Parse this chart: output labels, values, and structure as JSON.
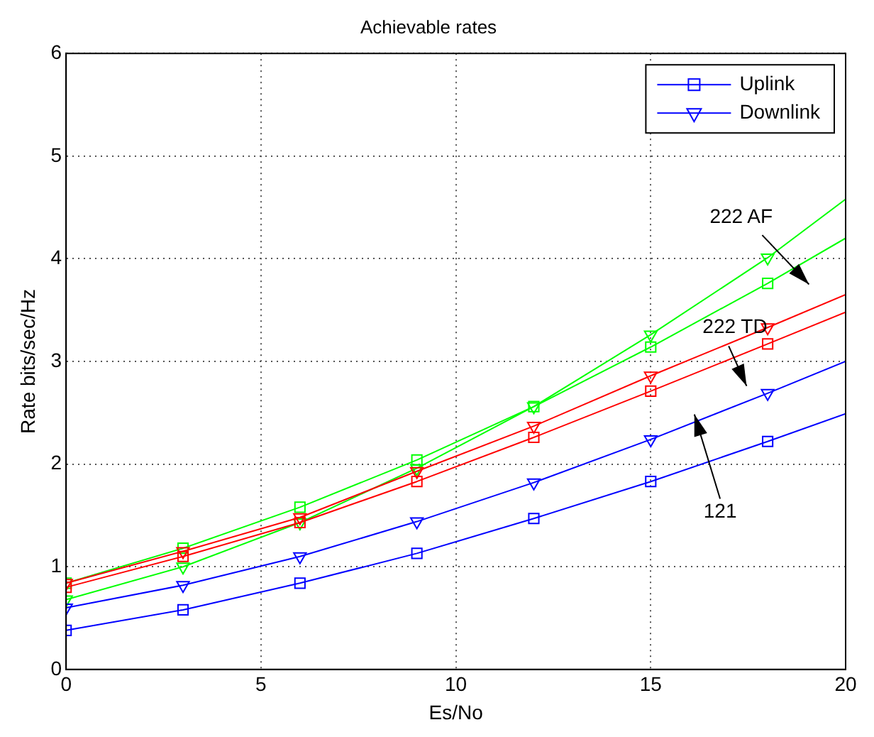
{
  "chart_data": {
    "type": "line",
    "title": "Achievable rates",
    "xlabel": "Es/No",
    "ylabel": "Rate bits/sec/Hz",
    "x": [
      0,
      3,
      6,
      9,
      12,
      15,
      18,
      20
    ],
    "series": [
      {
        "name": "Uplink",
        "color": "#0000ff",
        "marker": "square",
        "values": [
          0.38,
          0.58,
          0.84,
          1.13,
          1.47,
          1.83,
          2.22,
          2.49
        ]
      },
      {
        "name": "Downlink",
        "color": "#0000ff",
        "marker": "triangle",
        "values": [
          0.6,
          0.82,
          1.1,
          1.44,
          1.82,
          2.24,
          2.69,
          3.0
        ]
      },
      {
        "color": "#ff0000",
        "marker": "square",
        "values": [
          0.8,
          1.1,
          1.43,
          1.83,
          2.26,
          2.71,
          3.17,
          3.48
        ]
      },
      {
        "color": "#ff0000",
        "marker": "triangle",
        "values": [
          0.84,
          1.15,
          1.48,
          1.93,
          2.37,
          2.86,
          3.33,
          3.65
        ]
      },
      {
        "color": "#00ff00",
        "marker": "square",
        "values": [
          0.84,
          1.18,
          1.58,
          2.04,
          2.56,
          3.14,
          3.76,
          4.2
        ]
      },
      {
        "color": "#00ff00",
        "marker": "triangle",
        "values": [
          0.68,
          1.0,
          1.43,
          1.96,
          2.56,
          3.26,
          4.01,
          4.58
        ]
      }
    ],
    "xlim": [
      0,
      20
    ],
    "xticks": [
      0,
      5,
      10,
      15,
      20
    ],
    "ylim": [
      0,
      6
    ],
    "yticks": [
      0,
      1,
      2,
      3,
      4,
      5,
      6
    ],
    "grid": true,
    "legend": "top right",
    "line_style": "solid",
    "annotations": [
      "222 AF",
      "222 TD",
      "121"
    ]
  }
}
